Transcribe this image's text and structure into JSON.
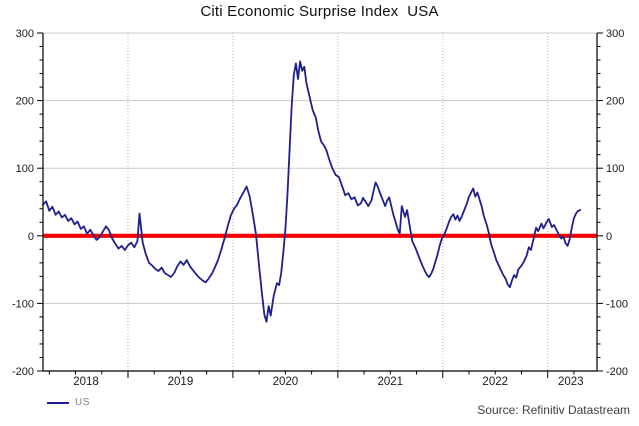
{
  "header": {
    "title": "Citi Economic Surprise Index  USA"
  },
  "legend": {
    "series_label": "US"
  },
  "footer": {
    "source": "Source: Refinitiv Datastream"
  },
  "colors": {
    "series_line": "#1f1f8f",
    "zero_line": "#f60000",
    "grid_major": "#cccccc",
    "grid_dotted": "#b3b3b3",
    "axis": "#000000",
    "tick_label": "#1a1a1a",
    "legend_text": "#808080",
    "source_text": "#404040"
  },
  "chart_data": {
    "type": "line",
    "title": "Citi Economic Surprise Index  USA",
    "legend_position": "bottom-left",
    "grid": "on",
    "x_axis": {
      "min": 2018.19,
      "max": 2023.47,
      "year_boundaries": [
        2019,
        2020,
        2021,
        2022,
        2023
      ],
      "minor_step_years": 0.25,
      "labels": [
        {
          "text": "2018",
          "t": 2018.6
        },
        {
          "text": "2019",
          "t": 2019.5
        },
        {
          "text": "2020",
          "t": 2020.5
        },
        {
          "text": "2021",
          "t": 2021.5
        },
        {
          "text": "2022",
          "t": 2022.5
        },
        {
          "text": "2023",
          "t": 2023.22
        }
      ]
    },
    "y_axis": {
      "min": -200,
      "max": 300,
      "major_step": 100,
      "minor_step": 20,
      "sides": "both",
      "tick_labels": [
        "300",
        "200",
        "100",
        "0",
        "-100",
        "-200"
      ]
    },
    "zero_line": {
      "value": 0
    },
    "series": [
      {
        "name": "US",
        "points": [
          [
            2018.19,
            46
          ],
          [
            2018.22,
            51
          ],
          [
            2018.25,
            37
          ],
          [
            2018.28,
            43
          ],
          [
            2018.31,
            31
          ],
          [
            2018.34,
            36
          ],
          [
            2018.37,
            27
          ],
          [
            2018.4,
            31
          ],
          [
            2018.43,
            22
          ],
          [
            2018.46,
            26
          ],
          [
            2018.49,
            17
          ],
          [
            2018.52,
            21
          ],
          [
            2018.55,
            10
          ],
          [
            2018.58,
            14
          ],
          [
            2018.61,
            3
          ],
          [
            2018.64,
            9
          ],
          [
            2018.67,
            1
          ],
          [
            2018.7,
            -6
          ],
          [
            2018.73,
            -2
          ],
          [
            2018.76,
            6
          ],
          [
            2018.79,
            14
          ],
          [
            2018.82,
            8
          ],
          [
            2018.85,
            -4
          ],
          [
            2018.88,
            -12
          ],
          [
            2018.91,
            -19
          ],
          [
            2018.94,
            -15
          ],
          [
            2018.97,
            -21
          ],
          [
            2019.0,
            -14
          ],
          [
            2019.03,
            -10
          ],
          [
            2019.06,
            -17
          ],
          [
            2019.09,
            -8
          ],
          [
            2019.11,
            33
          ],
          [
            2019.14,
            -10
          ],
          [
            2019.17,
            -27
          ],
          [
            2019.2,
            -40
          ],
          [
            2019.23,
            -44
          ],
          [
            2019.26,
            -49
          ],
          [
            2019.29,
            -52
          ],
          [
            2019.32,
            -47
          ],
          [
            2019.35,
            -55
          ],
          [
            2019.38,
            -58
          ],
          [
            2019.41,
            -61
          ],
          [
            2019.44,
            -55
          ],
          [
            2019.47,
            -45
          ],
          [
            2019.5,
            -38
          ],
          [
            2019.53,
            -43
          ],
          [
            2019.56,
            -36
          ],
          [
            2019.59,
            -45
          ],
          [
            2019.62,
            -51
          ],
          [
            2019.65,
            -57
          ],
          [
            2019.68,
            -62
          ],
          [
            2019.71,
            -66
          ],
          [
            2019.74,
            -69
          ],
          [
            2019.77,
            -63
          ],
          [
            2019.8,
            -56
          ],
          [
            2019.83,
            -46
          ],
          [
            2019.86,
            -35
          ],
          [
            2019.89,
            -20
          ],
          [
            2019.92,
            -4
          ],
          [
            2019.95,
            14
          ],
          [
            2019.98,
            30
          ],
          [
            2020.01,
            40
          ],
          [
            2020.04,
            46
          ],
          [
            2020.07,
            56
          ],
          [
            2020.1,
            64
          ],
          [
            2020.13,
            73
          ],
          [
            2020.16,
            58
          ],
          [
            2020.19,
            32
          ],
          [
            2020.22,
            2
          ],
          [
            2020.25,
            -45
          ],
          [
            2020.28,
            -90
          ],
          [
            2020.3,
            -117
          ],
          [
            2020.32,
            -127
          ],
          [
            2020.34,
            -104
          ],
          [
            2020.36,
            -118
          ],
          [
            2020.39,
            -88
          ],
          [
            2020.42,
            -70
          ],
          [
            2020.44,
            -73
          ],
          [
            2020.46,
            -55
          ],
          [
            2020.48,
            -25
          ],
          [
            2020.5,
            10
          ],
          [
            2020.52,
            62
          ],
          [
            2020.54,
            128
          ],
          [
            2020.56,
            192
          ],
          [
            2020.58,
            238
          ],
          [
            2020.6,
            255
          ],
          [
            2020.62,
            232
          ],
          [
            2020.64,
            258
          ],
          [
            2020.66,
            244
          ],
          [
            2020.68,
            250
          ],
          [
            2020.7,
            226
          ],
          [
            2020.73,
            206
          ],
          [
            2020.76,
            186
          ],
          [
            2020.79,
            175
          ],
          [
            2020.81,
            158
          ],
          [
            2020.84,
            140
          ],
          [
            2020.87,
            133
          ],
          [
            2020.89,
            127
          ],
          [
            2020.92,
            112
          ],
          [
            2020.95,
            99
          ],
          [
            2020.98,
            90
          ],
          [
            2021.01,
            87
          ],
          [
            2021.04,
            74
          ],
          [
            2021.07,
            60
          ],
          [
            2021.1,
            63
          ],
          [
            2021.13,
            54
          ],
          [
            2021.16,
            57
          ],
          [
            2021.19,
            45
          ],
          [
            2021.22,
            48
          ],
          [
            2021.24,
            56
          ],
          [
            2021.27,
            49
          ],
          [
            2021.29,
            44
          ],
          [
            2021.32,
            52
          ],
          [
            2021.34,
            66
          ],
          [
            2021.36,
            79
          ],
          [
            2021.38,
            73
          ],
          [
            2021.4,
            64
          ],
          [
            2021.43,
            52
          ],
          [
            2021.45,
            44
          ],
          [
            2021.47,
            52
          ],
          [
            2021.49,
            57
          ],
          [
            2021.51,
            44
          ],
          [
            2021.53,
            31
          ],
          [
            2021.55,
            21
          ],
          [
            2021.57,
            10
          ],
          [
            2021.59,
            3
          ],
          [
            2021.61,
            44
          ],
          [
            2021.64,
            28
          ],
          [
            2021.66,
            38
          ],
          [
            2021.69,
            10
          ],
          [
            2021.71,
            -8
          ],
          [
            2021.74,
            -18
          ],
          [
            2021.77,
            -30
          ],
          [
            2021.8,
            -42
          ],
          [
            2021.83,
            -52
          ],
          [
            2021.85,
            -58
          ],
          [
            2021.87,
            -61
          ],
          [
            2021.89,
            -56
          ],
          [
            2021.91,
            -49
          ],
          [
            2021.93,
            -38
          ],
          [
            2021.95,
            -28
          ],
          [
            2021.97,
            -15
          ],
          [
            2021.99,
            -5
          ],
          [
            2022.02,
            4
          ],
          [
            2022.04,
            12
          ],
          [
            2022.06,
            21
          ],
          [
            2022.08,
            28
          ],
          [
            2022.1,
            32
          ],
          [
            2022.12,
            24
          ],
          [
            2022.14,
            30
          ],
          [
            2022.16,
            22
          ],
          [
            2022.18,
            28
          ],
          [
            2022.2,
            36
          ],
          [
            2022.23,
            48
          ],
          [
            2022.25,
            58
          ],
          [
            2022.27,
            64
          ],
          [
            2022.29,
            70
          ],
          [
            2022.31,
            58
          ],
          [
            2022.33,
            64
          ],
          [
            2022.35,
            54
          ],
          [
            2022.37,
            44
          ],
          [
            2022.39,
            30
          ],
          [
            2022.42,
            16
          ],
          [
            2022.44,
            4
          ],
          [
            2022.46,
            -12
          ],
          [
            2022.49,
            -26
          ],
          [
            2022.51,
            -36
          ],
          [
            2022.54,
            -46
          ],
          [
            2022.57,
            -56
          ],
          [
            2022.6,
            -64
          ],
          [
            2022.62,
            -72
          ],
          [
            2022.64,
            -76
          ],
          [
            2022.66,
            -66
          ],
          [
            2022.68,
            -58
          ],
          [
            2022.7,
            -62
          ],
          [
            2022.72,
            -50
          ],
          [
            2022.75,
            -44
          ],
          [
            2022.77,
            -39
          ],
          [
            2022.8,
            -29
          ],
          [
            2022.82,
            -17
          ],
          [
            2022.84,
            -21
          ],
          [
            2022.86,
            -8
          ],
          [
            2022.89,
            12
          ],
          [
            2022.91,
            7
          ],
          [
            2022.94,
            18
          ],
          [
            2022.96,
            11
          ],
          [
            2022.99,
            20
          ],
          [
            2023.01,
            25
          ],
          [
            2023.04,
            13
          ],
          [
            2023.06,
            16
          ],
          [
            2023.09,
            7
          ],
          [
            2023.11,
            1
          ],
          [
            2023.13,
            -4
          ],
          [
            2023.15,
            -1
          ],
          [
            2023.17,
            -11
          ],
          [
            2023.19,
            -15
          ],
          [
            2023.21,
            -5
          ],
          [
            2023.23,
            12
          ],
          [
            2023.25,
            26
          ],
          [
            2023.27,
            33
          ],
          [
            2023.29,
            37
          ],
          [
            2023.31,
            38
          ]
        ]
      }
    ]
  }
}
